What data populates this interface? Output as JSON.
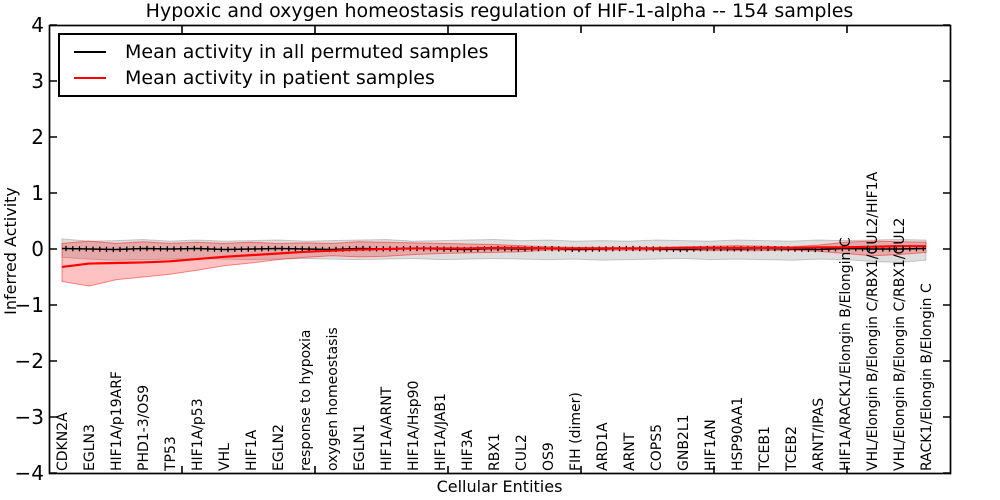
{
  "figure": {
    "title": "Hypoxic and oxygen homeostasis regulation of HIF-1-alpha -- 154 samples",
    "xlabel": "Cellular Entities",
    "ylabel": "Inferred Activity"
  },
  "legend": {
    "entries": [
      {
        "label": "Mean activity in all permuted samples",
        "color": "#000000"
      },
      {
        "label": "Mean activity in patient samples",
        "color": "#ff0000"
      }
    ]
  },
  "style": {
    "background": "#ffffff",
    "text_color": "#000000",
    "permuted_line_color": "#000000",
    "patient_line_color": "#ff0000",
    "permuted_band_color": "rgba(0,0,0,0.13)",
    "patient_band_color": "rgba(255,0,0,0.24)",
    "patient_band_edge_color": "rgba(255,0,0,0.45)",
    "permuted_band_edge_color": "rgba(0,0,0,0.18)"
  },
  "chart_data": {
    "type": "line",
    "title": "Hypoxic and oxygen homeostasis regulation of HIF-1-alpha -- 154 samples",
    "xlabel": "Cellular Entities",
    "ylabel": "Inferred Activity",
    "ylim": [
      -4,
      4
    ],
    "yticks": [
      4,
      3,
      2,
      1,
      0,
      -1,
      -2,
      -3,
      -4
    ],
    "ytick_labels": [
      "4",
      "3",
      "2",
      "1",
      "0",
      "−1",
      "−2",
      "−3",
      "−4"
    ],
    "grid": false,
    "legend_position": "upper left",
    "xtick_label_rotation": 90,
    "categories": [
      "CDKN2A",
      "EGLN3",
      "HIF1A/p19ARF",
      "PHD1-3/OS9",
      "TP53",
      "HIF1A/p53",
      "VHL",
      "HIF1A",
      "EGLN2",
      "response to hypoxia",
      "oxygen homeostasis",
      "EGLN1",
      "HIF1A/ARNT",
      "HIF1A/Hsp90",
      "HIF1A/JAB1",
      "HIF3A",
      "RBX1",
      "CUL2",
      "OS9",
      "FIH (dimer)",
      "ARD1A",
      "ARNT",
      "COPS5",
      "GNB2L1",
      "HIF1AN",
      "HSP90AA1",
      "TCEB1",
      "TCEB2",
      "ARNT/IPAS",
      "HIF1A/RACK1/Elongin B/Elongin C",
      "VHL/Elongin B/Elongin C/RBX1/CUL2/HIF1A",
      "VHL/Elongin B/Elongin C/RBX1/CUL2",
      "RACK1/Elongin B/Elongin C"
    ],
    "series": [
      {
        "name": "Mean activity in all permuted samples",
        "color": "#000000",
        "values": [
          0.01,
          0,
          -0.01,
          0.01,
          0,
          0.01,
          -0.01,
          0,
          0.01,
          0,
          -0.01,
          0.01,
          0,
          0.01,
          0,
          -0.01,
          0.01,
          0,
          0.01,
          -0.01,
          0,
          0.01,
          0,
          -0.01,
          0.01,
          0,
          0.01,
          0,
          -0.01,
          0.01,
          0,
          0,
          0.01
        ]
      },
      {
        "name": "Mean activity in patient samples",
        "color": "#ff0000",
        "values": [
          -0.32,
          -0.26,
          -0.25,
          -0.24,
          -0.22,
          -0.18,
          -0.14,
          -0.11,
          -0.08,
          -0.05,
          -0.03,
          -0.01,
          0,
          0.01,
          0.01,
          0.01,
          0.02,
          0.02,
          0.01,
          0.01,
          0.01,
          0.01,
          0.01,
          0.02,
          0.02,
          0.02,
          0.02,
          0.02,
          0.03,
          0.03,
          0.04,
          0.05,
          0.05
        ]
      }
    ],
    "bands": [
      {
        "name": "permuted samples range",
        "lo": [
          -0.15,
          -0.18,
          -0.2,
          -0.19,
          -0.18,
          -0.17,
          -0.18,
          -0.19,
          -0.18,
          -0.17,
          -0.18,
          -0.19,
          -0.18,
          -0.17,
          -0.19,
          -0.18,
          -0.17,
          -0.18,
          -0.19,
          -0.18,
          -0.2,
          -0.19,
          -0.18,
          -0.17,
          -0.19,
          -0.18,
          -0.19,
          -0.2,
          -0.18,
          -0.19,
          -0.22,
          -0.24,
          -0.2
        ],
        "hi": [
          0.18,
          0.14,
          0.15,
          0.17,
          0.14,
          0.16,
          0.14,
          0.15,
          0.16,
          0.14,
          0.15,
          0.16,
          0.17,
          0.14,
          0.15,
          0.16,
          0.17,
          0.15,
          0.16,
          0.14,
          0.15,
          0.14,
          0.16,
          0.15,
          0.14,
          0.16,
          0.15,
          0.14,
          0.16,
          0.15,
          0.16,
          0.17,
          0.16
        ]
      },
      {
        "name": "patient samples range",
        "lo": [
          -0.58,
          -0.66,
          -0.55,
          -0.5,
          -0.45,
          -0.38,
          -0.3,
          -0.25,
          -0.19,
          -0.15,
          -0.12,
          -0.14,
          -0.13,
          -0.1,
          -0.08,
          -0.07,
          -0.06,
          -0.05,
          -0.02,
          -0.02,
          -0.02,
          -0.02,
          -0.02,
          -0.02,
          -0.03,
          -0.03,
          -0.03,
          -0.02,
          -0.04,
          -0.08,
          -0.12,
          -0.1,
          -0.06
        ],
        "hi": [
          0.1,
          0.14,
          0.1,
          0.13,
          0.1,
          0.12,
          0.1,
          0.12,
          0.1,
          0.11,
          0.1,
          0.13,
          0.12,
          0.11,
          0.1,
          0.09,
          0.08,
          0.06,
          0.04,
          0.03,
          0.03,
          0.03,
          0.03,
          0.04,
          0.05,
          0.06,
          0.05,
          0.04,
          0.07,
          0.12,
          0.14,
          0.13,
          0.12
        ]
      }
    ]
  }
}
